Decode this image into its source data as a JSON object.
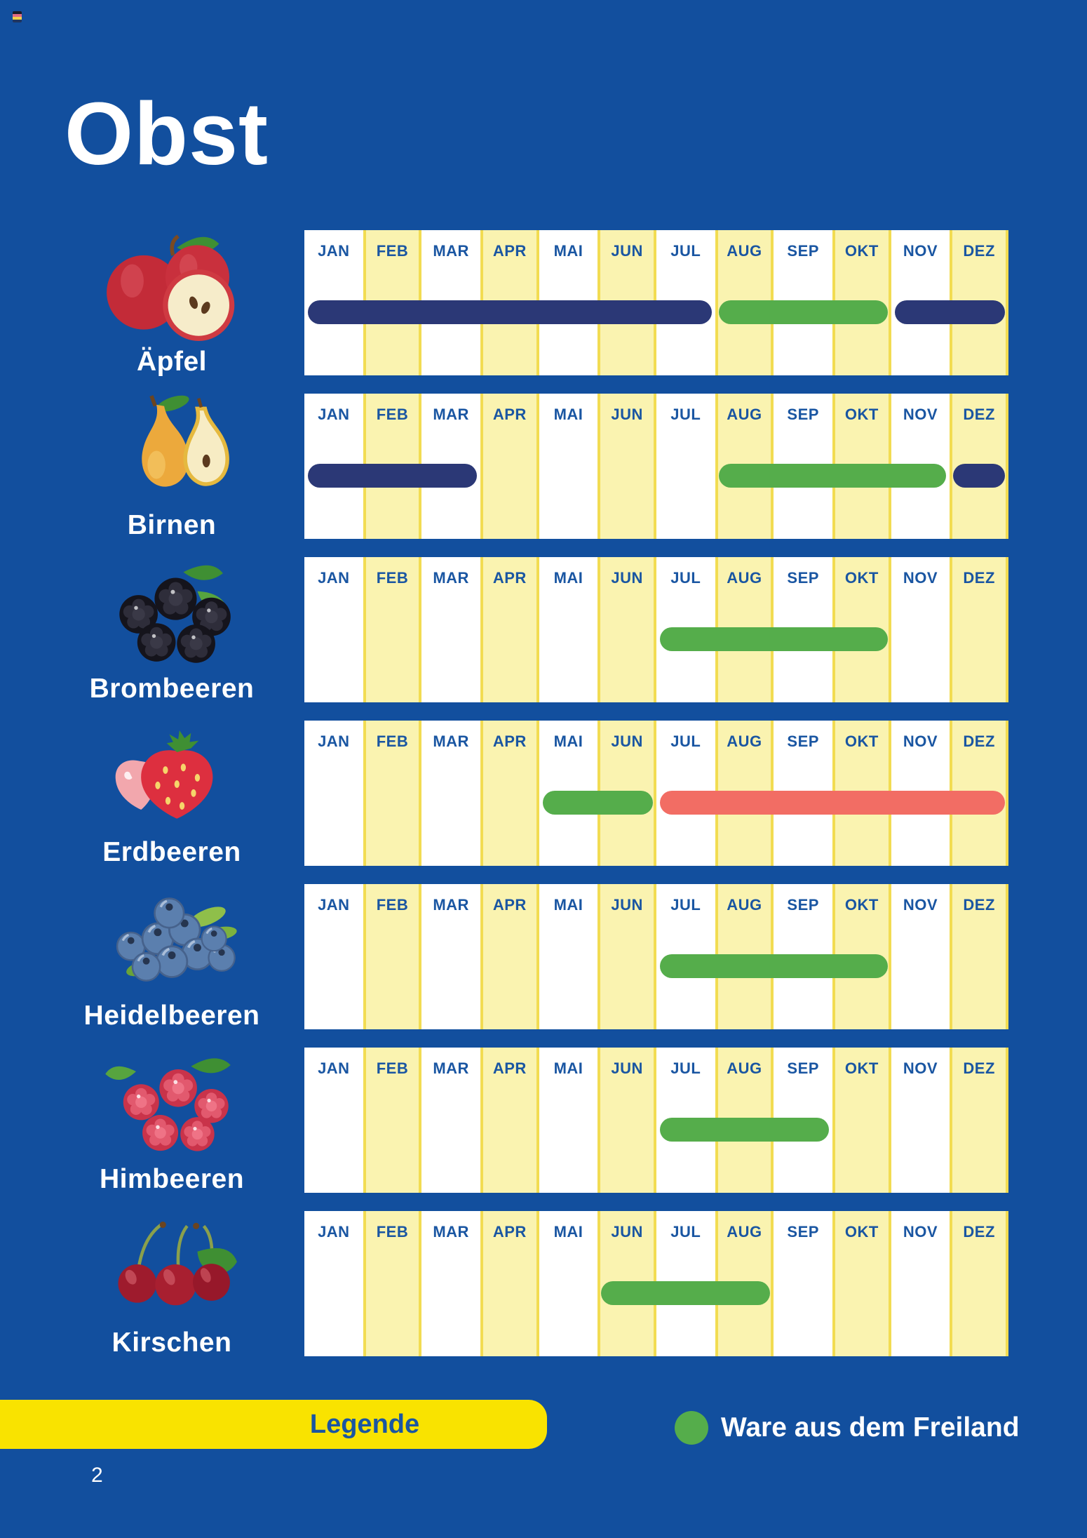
{
  "page": {
    "title": "Obst",
    "number": "2"
  },
  "calendar": {
    "months": [
      "JAN",
      "FEB",
      "MAR",
      "APR",
      "MAI",
      "JUN",
      "JUL",
      "AUG",
      "SEP",
      "OKT",
      "NOV",
      "DEZ"
    ],
    "rows": [
      {
        "label": "Äpfel",
        "fruit": "apples",
        "segments": [
          {
            "type": "navy",
            "start": "JAN",
            "end": "JUL"
          },
          {
            "type": "green",
            "start": "AUG",
            "end": "OKT"
          },
          {
            "type": "navy",
            "start": "NOV",
            "end": "DEZ"
          }
        ]
      },
      {
        "label": "Birnen",
        "fruit": "pears",
        "segments": [
          {
            "type": "navy",
            "start": "JAN",
            "end": "MAR"
          },
          {
            "type": "green",
            "start": "AUG",
            "end": "NOV"
          },
          {
            "type": "navy",
            "start": "DEZ",
            "end": "DEZ"
          }
        ]
      },
      {
        "label": "Brombeeren",
        "fruit": "blackberries",
        "segments": [
          {
            "type": "green",
            "start": "JUL",
            "end": "OKT"
          }
        ]
      },
      {
        "label": "Erdbeeren",
        "fruit": "strawberries",
        "segments": [
          {
            "type": "green",
            "start": "MAI",
            "end": "JUN"
          },
          {
            "type": "red",
            "start": "JUL",
            "end": "DEZ"
          }
        ]
      },
      {
        "label": "Heidelbeeren",
        "fruit": "blueberries",
        "segments": [
          {
            "type": "green",
            "start": "JUL",
            "end": "OKT"
          }
        ]
      },
      {
        "label": "Himbeeren",
        "fruit": "raspberries",
        "segments": [
          {
            "type": "green",
            "start": "JUL",
            "end": "SEP"
          }
        ]
      },
      {
        "label": "Kirschen",
        "fruit": "cherries",
        "segments": [
          {
            "type": "green",
            "start": "JUN",
            "end": "AUG"
          }
        ]
      }
    ]
  },
  "legend": {
    "title": "Legende",
    "items": [
      {
        "type": "green",
        "label": "Ware aus dem Freiland"
      }
    ]
  },
  "colors": {
    "background": "#124F9E",
    "bars": {
      "navy": "#2B3876",
      "green": "#55AD4B",
      "red": "#F26D64"
    },
    "column_yellow": "#FAF3B0",
    "legend_yellow": "#F9E300",
    "month_text": "#1A56A2"
  }
}
